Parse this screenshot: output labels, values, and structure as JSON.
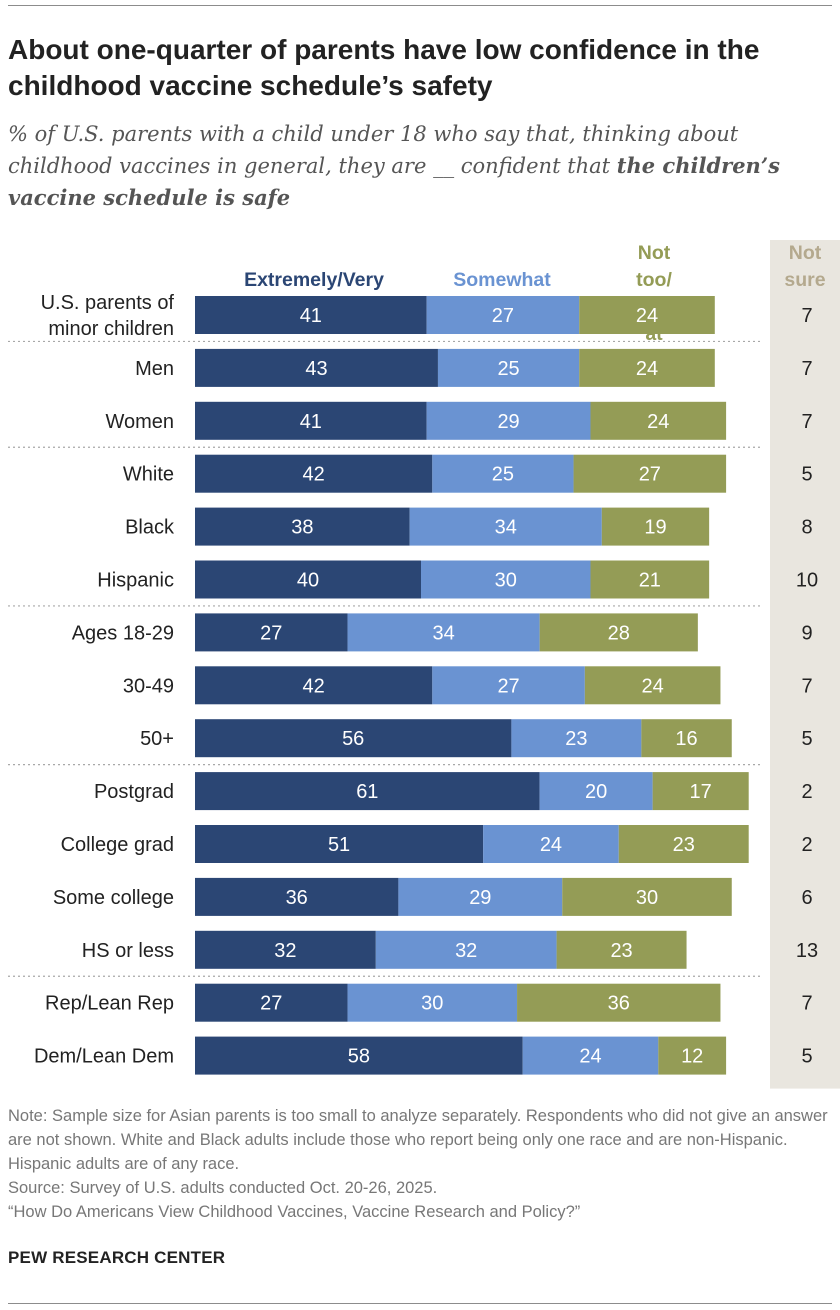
{
  "header": {
    "title": "About one-quarter of parents have low confidence in the childhood vaccine schedule’s safety",
    "subtitle_pre": "% of U.S. parents with a child under 18 who say that, thinking about childhood vaccines in general, they are __ confident that ",
    "subtitle_bold": "the children’s vaccine schedule is safe"
  },
  "colors": {
    "extremely_very": "#2b4674",
    "somewhat": "#6a93d2",
    "not_too": "#949c56",
    "not_sure_bg": "#e9e6df",
    "not_sure_text": "#b4a98e"
  },
  "chart_data": {
    "type": "bar",
    "orientation": "horizontal",
    "stacked": true,
    "legend": [
      "Extremely/Very",
      "Somewhat",
      "Not too/ Not at all"
    ],
    "side_column_label": "Not sure",
    "categories": [
      "U.S. parents of minor children",
      "Men",
      "Women",
      "White",
      "Black",
      "Hispanic",
      "Ages 18-29",
      "30-49",
      "50+",
      "Postgrad",
      "College grad",
      "Some college",
      "HS or less",
      "Rep/Lean Rep",
      "Dem/Lean Dem"
    ],
    "group_breaks_after": [
      0,
      2,
      5,
      8,
      12
    ],
    "series": [
      {
        "name": "Extremely/Very",
        "values": [
          41,
          43,
          41,
          42,
          38,
          40,
          27,
          42,
          56,
          61,
          51,
          36,
          32,
          27,
          58
        ]
      },
      {
        "name": "Somewhat",
        "values": [
          27,
          25,
          29,
          25,
          34,
          30,
          34,
          27,
          23,
          20,
          24,
          29,
          32,
          30,
          24
        ]
      },
      {
        "name": "Not too/Not at all",
        "values": [
          24,
          24,
          24,
          27,
          19,
          21,
          28,
          24,
          16,
          17,
          23,
          30,
          23,
          36,
          12
        ]
      }
    ],
    "not_sure": [
      7,
      7,
      7,
      5,
      8,
      10,
      9,
      7,
      5,
      2,
      2,
      6,
      13,
      7,
      5
    ],
    "xlim": [
      0,
      100
    ]
  },
  "notes": {
    "note": "Note: Sample size for Asian parents is too small to analyze separately. Respondents who did not give an answer are not shown. White and Black adults include those who report being only one race and are non-Hispanic. Hispanic adults are of any race.",
    "source": "Source: Survey of U.S. adults conducted Oct. 20-26, 2025.",
    "report": "“How Do Americans View Childhood Vaccines, Vaccine Research and Policy?”"
  },
  "footer": {
    "brand": "PEW RESEARCH CENTER"
  }
}
